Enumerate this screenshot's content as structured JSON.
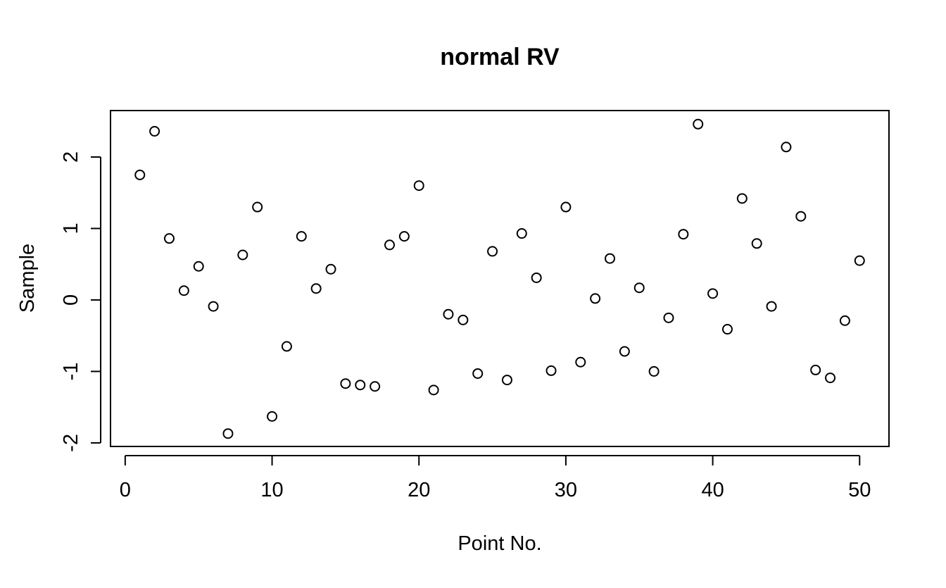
{
  "chart_data": {
    "type": "scatter",
    "title": "normal RV",
    "xlabel": "Point No.",
    "ylabel": "Sample",
    "xlim": [
      -1,
      52
    ],
    "ylim": [
      -2.05,
      2.65
    ],
    "xticks": [
      0,
      10,
      20,
      30,
      40,
      50
    ],
    "yticks": [
      -2,
      -1,
      0,
      1,
      2
    ],
    "grid": false,
    "legend": "none",
    "marker": "open-circle",
    "x": [
      1,
      2,
      3,
      4,
      5,
      6,
      7,
      8,
      9,
      10,
      11,
      12,
      13,
      14,
      15,
      16,
      17,
      18,
      19,
      20,
      21,
      22,
      23,
      24,
      25,
      26,
      27,
      28,
      29,
      30,
      31,
      32,
      33,
      34,
      35,
      36,
      37,
      38,
      39,
      40,
      41,
      42,
      43,
      44,
      45,
      46,
      47,
      48,
      49,
      50
    ],
    "y": [
      1.75,
      2.36,
      0.86,
      0.13,
      0.47,
      -0.09,
      -1.87,
      0.63,
      1.3,
      -1.63,
      -0.65,
      0.89,
      0.16,
      0.43,
      -1.17,
      -1.19,
      -1.21,
      0.77,
      0.89,
      1.6,
      -1.26,
      -0.2,
      -0.28,
      -1.03,
      0.68,
      -1.12,
      0.93,
      0.31,
      -0.99,
      1.3,
      -0.87,
      0.02,
      0.58,
      -0.72,
      0.17,
      -1.0,
      -0.25,
      0.92,
      2.46,
      0.09,
      -0.41,
      1.42,
      0.79,
      -0.09,
      2.14,
      1.17,
      -0.98,
      -1.09,
      -0.29,
      0.55
    ],
    "colors": {
      "foreground": "#000000",
      "background": "#ffffff"
    }
  }
}
